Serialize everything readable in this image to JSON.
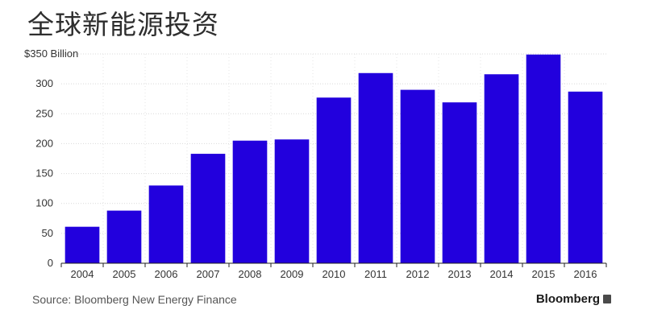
{
  "title": "全球新能源投资",
  "source": "Source: Bloomberg New Energy Finance",
  "brand": "Bloomberg",
  "chart_data": {
    "type": "bar",
    "categories": [
      "2004",
      "2005",
      "2006",
      "2007",
      "2008",
      "2009",
      "2010",
      "2011",
      "2012",
      "2013",
      "2014",
      "2015",
      "2016"
    ],
    "values": [
      61,
      88,
      130,
      183,
      205,
      207,
      277,
      318,
      290,
      269,
      316,
      349,
      287
    ],
    "yticks": [
      0,
      50,
      100,
      150,
      200,
      250,
      300,
      350
    ],
    "ytick_labels": [
      "0",
      "50",
      "100",
      "150",
      "200",
      "250",
      "300",
      "$350 Billion"
    ],
    "ylim": [
      0,
      350
    ],
    "bar_color": "#2200dd",
    "grid": true
  }
}
